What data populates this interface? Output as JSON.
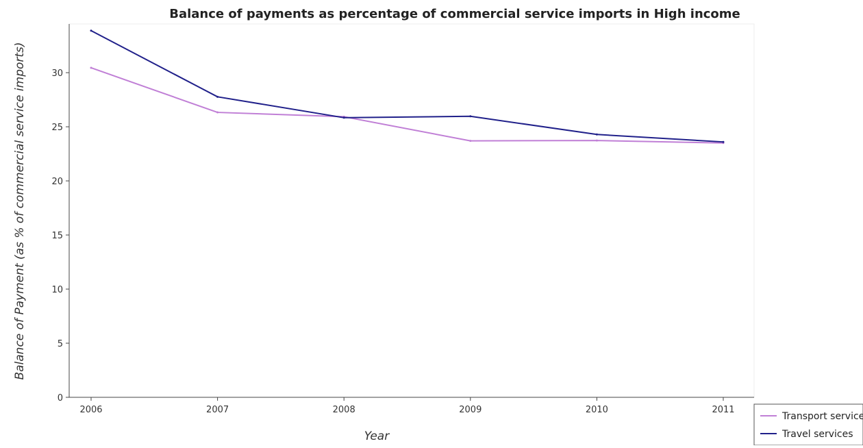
{
  "chart_data": {
    "type": "line",
    "title": "Balance of payments as percentage of commercial service imports in High income",
    "xlabel": "Year",
    "ylabel": "Balance of Payment (as % of commercial service imports)",
    "categories": [
      "2006",
      "2007",
      "2008",
      "2009",
      "2010",
      "2011"
    ],
    "ylim": [
      0,
      34.5
    ],
    "yticks": [
      0,
      5,
      10,
      15,
      20,
      25,
      30
    ],
    "ytick_labels": [
      "0",
      "5",
      "10",
      "15",
      "20",
      "25",
      "30"
    ],
    "grid": false,
    "legend_position": "bottom-right",
    "series": [
      {
        "name": "Transport services",
        "color": "#c07fd6",
        "values": [
          30.45,
          26.33,
          25.93,
          23.7,
          23.73,
          23.5
        ]
      },
      {
        "name": "Travel services",
        "color": "#20208a",
        "values": [
          33.88,
          27.77,
          25.84,
          25.97,
          24.29,
          23.6
        ]
      }
    ]
  }
}
